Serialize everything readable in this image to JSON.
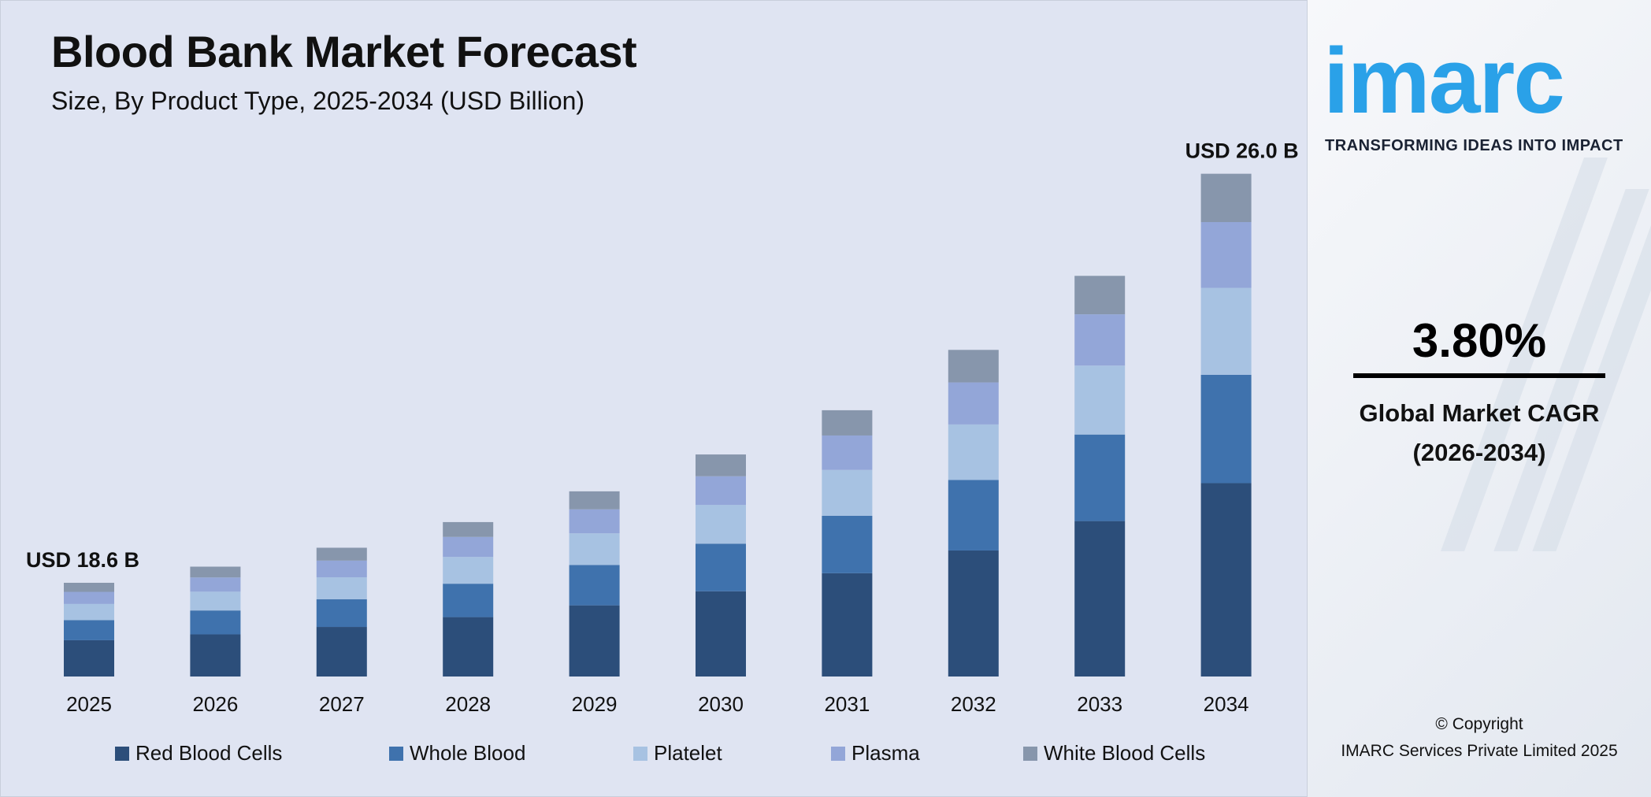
{
  "title": "Blood Bank Market Forecast",
  "subtitle": "Size, By Product Type, 2025-2034 (USD Billion)",
  "chart_data": {
    "type": "bar",
    "stacked": true,
    "title": "Blood Bank Market Forecast",
    "subtitle": "Size, By Product Type, 2025-2034 (USD Billion)",
    "categories": [
      "2025",
      "2026",
      "2027",
      "2028",
      "2029",
      "2030",
      "2031",
      "2032",
      "2033",
      "2034"
    ],
    "series": [
      {
        "name": "Red Blood Cells",
        "color": "#2c4e7a",
        "values": [
          7.2,
          7.4,
          7.7,
          8.0,
          8.3,
          8.6,
          9.0,
          9.3,
          9.7,
          10.0
        ]
      },
      {
        "name": "Whole Blood",
        "color": "#3f72ad",
        "values": [
          4.0,
          4.2,
          4.3,
          4.5,
          4.7,
          4.8,
          5.0,
          5.2,
          5.4,
          5.6
        ]
      },
      {
        "name": "Platelet",
        "color": "#a7c2e2",
        "values": [
          3.2,
          3.3,
          3.4,
          3.6,
          3.7,
          3.9,
          4.0,
          4.1,
          4.3,
          4.5
        ]
      },
      {
        "name": "Plasma",
        "color": "#93a6d8",
        "values": [
          2.4,
          2.5,
          2.6,
          2.7,
          2.8,
          2.9,
          3.0,
          3.1,
          3.2,
          3.4
        ]
      },
      {
        "name": "White Blood Cells",
        "color": "#8796ac",
        "values": [
          1.8,
          1.9,
          2.0,
          2.0,
          2.1,
          2.2,
          2.2,
          2.4,
          2.4,
          2.5
        ]
      }
    ],
    "annotations": [
      {
        "category": "2025",
        "text": "USD 18.6 B"
      },
      {
        "category": "2034",
        "text": "USD 26.0 B"
      }
    ],
    "legend_position": "bottom",
    "grid": false,
    "yaxis_visible": false
  },
  "brand": {
    "logo": "imarc",
    "tagline": "TRANSFORMING IDEAS INTO IMPACT",
    "color": "#2aa1e8"
  },
  "cagr": {
    "value": "3.80%",
    "label": "Global Market CAGR",
    "period": "(2026-2034)"
  },
  "copyright": {
    "line1": "© Copyright",
    "line2": "IMARC Services Private Limited 2025"
  }
}
